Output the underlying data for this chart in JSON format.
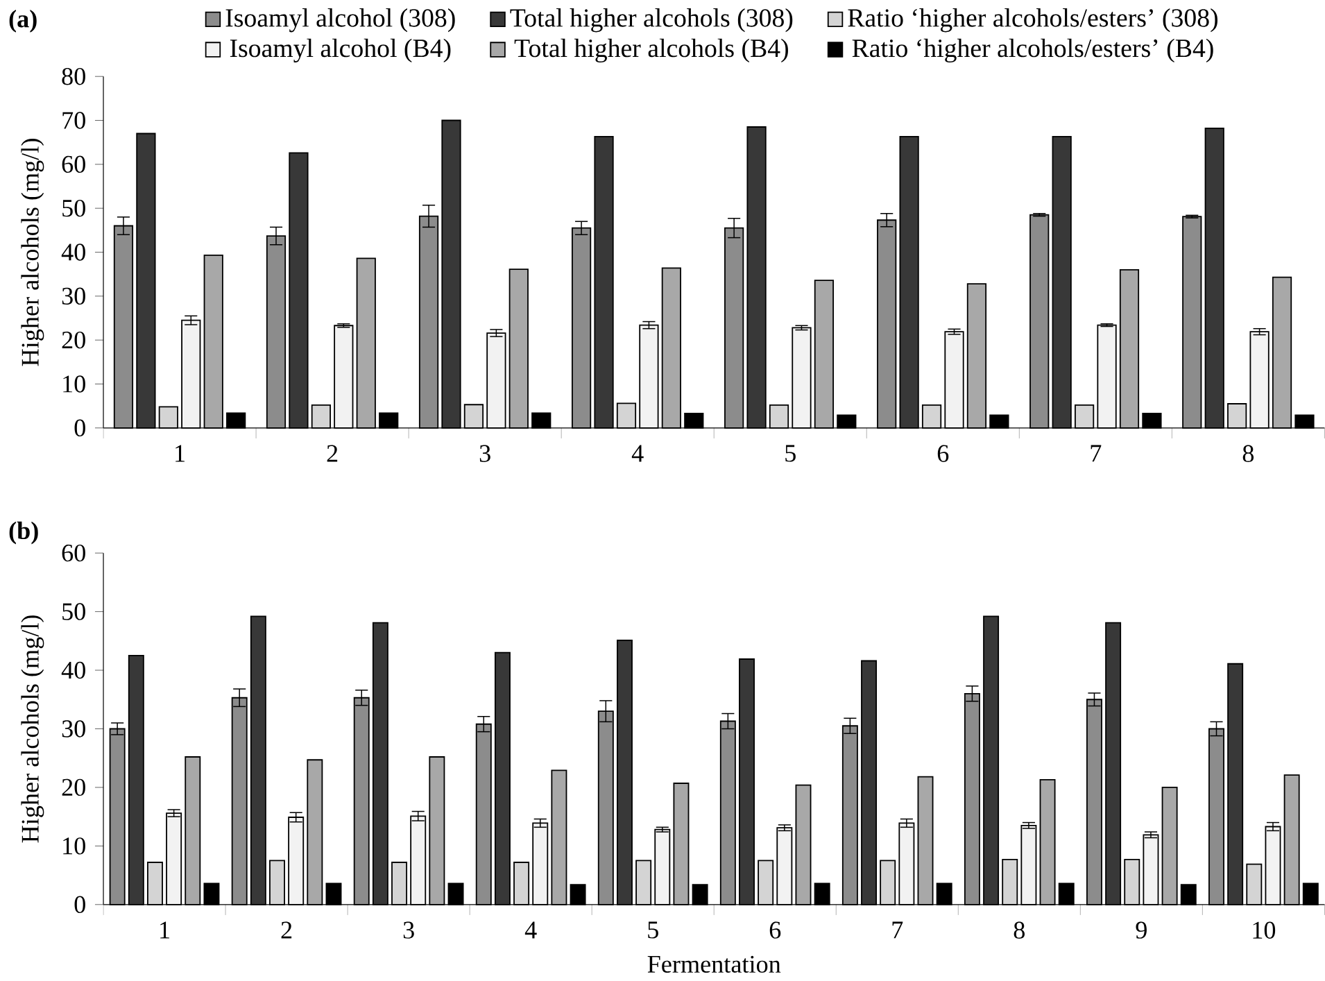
{
  "chart_data": [
    {
      "type": "bar",
      "title": "(a)",
      "ylabel": "Higher alcohols (mg/l)",
      "categories": [
        "1",
        "2",
        "3",
        "4",
        "5",
        "6",
        "7",
        "8"
      ],
      "ylim": [
        0,
        80
      ],
      "yticks": [
        0,
        10,
        20,
        30,
        40,
        50,
        60,
        70,
        80
      ],
      "legend": "top",
      "series": [
        {
          "name": "Isoamyl alcohol (308)",
          "color": "#8c8c8c",
          "values": [
            46,
            43.7,
            48.2,
            45.5,
            45.5,
            47.3,
            48.5,
            48.1
          ],
          "errors": [
            2,
            2,
            2.5,
            1.5,
            2.2,
            1.5,
            0.3,
            0.3
          ]
        },
        {
          "name": "Total higher alcohols (308)",
          "color": "#383838",
          "values": [
            67,
            62.6,
            70,
            66.3,
            68.5,
            66.3,
            66.3,
            68.2
          ]
        },
        {
          "name": "Ratio ‘higher alcohols/esters’ (308)",
          "color": "#d4d4d4",
          "values": [
            4.8,
            5.2,
            5.3,
            5.6,
            5.2,
            5.2,
            5.2,
            5.5
          ]
        },
        {
          "name": "Isoamyl alcohol (B4)",
          "color": "#f2f2f2",
          "values": [
            24.5,
            23.3,
            21.6,
            23.4,
            22.8,
            21.9,
            23.4,
            21.9
          ],
          "errors": [
            1,
            0.4,
            0.8,
            0.8,
            0.5,
            0.6,
            0.3,
            0.7
          ]
        },
        {
          "name": "Total higher alcohols (B4)",
          "color": "#a8a8a8",
          "values": [
            39.3,
            38.6,
            36.1,
            36.4,
            33.6,
            32.8,
            36,
            34.3
          ]
        },
        {
          "name": "Ratio ‘higher alcohols/esters’ (B4)",
          "color": "#000000",
          "values": [
            3.4,
            3.4,
            3.4,
            3.3,
            2.9,
            2.9,
            3.3,
            2.9
          ]
        }
      ]
    },
    {
      "type": "bar",
      "title": "(b)",
      "ylabel": "Higher alcohols (mg/l)",
      "xlabel": "Fermentation",
      "categories": [
        "1",
        "2",
        "3",
        "4",
        "5",
        "6",
        "7",
        "8",
        "9",
        "10"
      ],
      "ylim": [
        0,
        60
      ],
      "yticks": [
        0,
        10,
        20,
        30,
        40,
        50,
        60
      ],
      "series": [
        {
          "color": "#8c8c8c",
          "values": [
            30,
            35.3,
            35.3,
            30.8,
            33,
            31.3,
            30.5,
            36,
            35,
            30
          ],
          "errors": [
            1,
            1.5,
            1.3,
            1.3,
            1.8,
            1.3,
            1.3,
            1.3,
            1.1,
            1.2
          ]
        },
        {
          "color": "#383838",
          "values": [
            42.5,
            49.2,
            48.1,
            43,
            45.1,
            41.9,
            41.6,
            49.2,
            48.1,
            41.1
          ]
        },
        {
          "color": "#d4d4d4",
          "values": [
            7.2,
            7.5,
            7.2,
            7.2,
            7.5,
            7.5,
            7.5,
            7.7,
            7.7,
            6.9
          ]
        },
        {
          "color": "#f2f2f2",
          "values": [
            15.6,
            14.9,
            15.1,
            13.9,
            12.8,
            13.1,
            13.9,
            13.5,
            11.9,
            13.3
          ],
          "errors": [
            0.6,
            0.8,
            0.8,
            0.7,
            0.4,
            0.5,
            0.7,
            0.5,
            0.5,
            0.7
          ]
        },
        {
          "color": "#a8a8a8",
          "values": [
            25.2,
            24.7,
            25.2,
            22.9,
            20.7,
            20.4,
            21.8,
            21.3,
            20,
            22.1
          ]
        },
        {
          "color": "#000000",
          "values": [
            3.6,
            3.6,
            3.6,
            3.4,
            3.4,
            3.6,
            3.6,
            3.6,
            3.4,
            3.6
          ]
        }
      ]
    }
  ]
}
